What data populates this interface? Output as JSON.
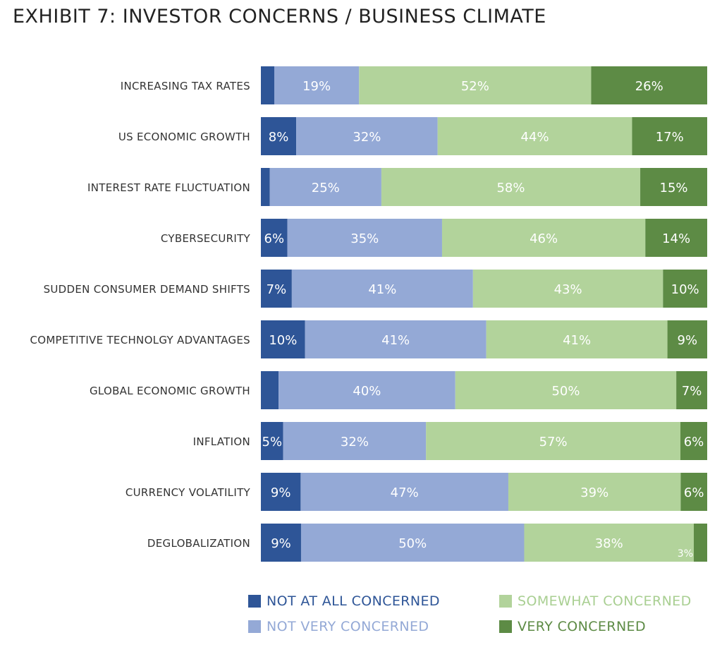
{
  "title": "EXHIBIT 7: INVESTOR CONCERNS / BUSINESS CLIMATE",
  "chart_data": {
    "type": "bar",
    "orientation": "horizontal",
    "stacked": true,
    "normalized_percent": true,
    "categories": [
      "INCREASING TAX RATES",
      "US ECONOMIC GROWTH",
      "INTEREST RATE FLUCTUATION",
      "CYBERSECURITY",
      "SUDDEN CONSUMER DEMAND SHIFTS",
      "COMPETITIVE TECHNOLGY ADVANTAGES",
      "GLOBAL ECONOMIC GROWTH",
      "INFLATION",
      "CURRENCY VOLATILITY",
      "DEGLOBALIZATION"
    ],
    "series": [
      {
        "name": "NOT AT ALL CONCERNED",
        "color": "#2e5597",
        "values": [
          3,
          8,
          2,
          6,
          7,
          10,
          4,
          5,
          9,
          9
        ]
      },
      {
        "name": "NOT VERY CONCERNED",
        "color": "#94a9d6",
        "values": [
          19,
          32,
          25,
          35,
          41,
          41,
          40,
          32,
          47,
          50
        ]
      },
      {
        "name": "SOMEWHAT CONCERNED",
        "color": "#b2d39b",
        "values": [
          52,
          44,
          58,
          46,
          43,
          41,
          50,
          57,
          39,
          38
        ]
      },
      {
        "name": "VERY CONCERNED",
        "color": "#5d8b45",
        "values": [
          26,
          17,
          15,
          14,
          10,
          9,
          7,
          6,
          6,
          3
        ]
      }
    ],
    "value_suffix": "%",
    "legend_position": "bottom",
    "grid": false
  },
  "legend_text_colors": [
    "#2e5597",
    "#94a9d6",
    "#a9cf92",
    "#5d8b45"
  ]
}
